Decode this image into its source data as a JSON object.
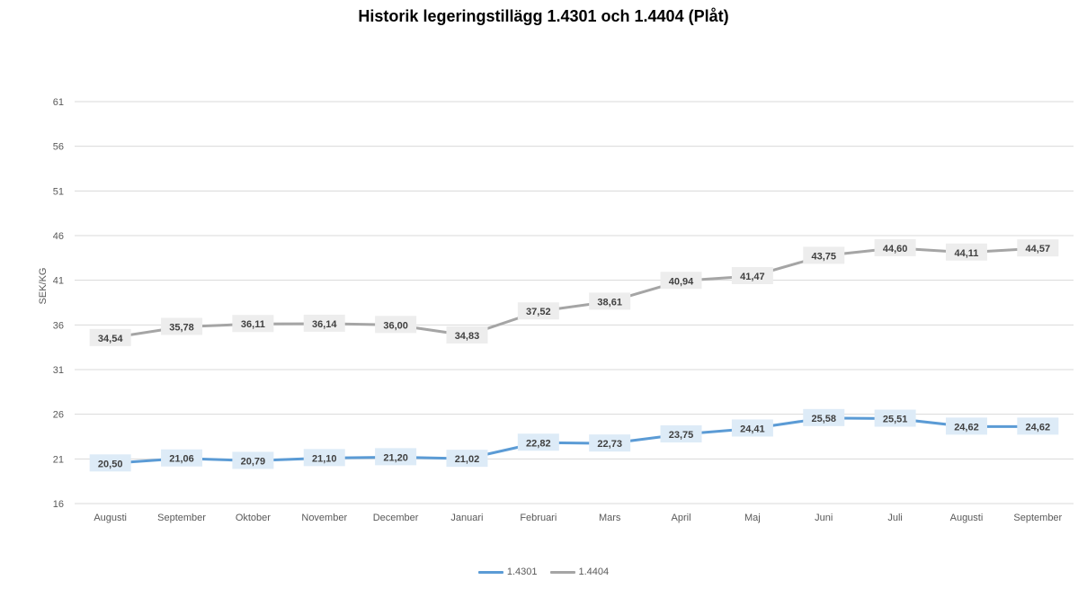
{
  "chart_data": {
    "type": "line",
    "title": "Historik legeringstillägg 1.4301 och 1.4404 (Plåt)",
    "ylabel": "SEK/KG",
    "xlabel": "",
    "ylim": [
      16,
      61
    ],
    "yticks": [
      "16",
      "21",
      "26",
      "31",
      "36",
      "41",
      "46",
      "51",
      "56",
      "61"
    ],
    "grid": true,
    "legend_position": "bottom",
    "categories": [
      "Augusti",
      "September",
      "Oktober",
      "November",
      "December",
      "Januari",
      "Februari",
      "Mars",
      "April",
      "Maj",
      "Juni",
      "Juli",
      "Augusti",
      "September"
    ],
    "series": [
      {
        "name": "1.4301",
        "color": "#5B9BD5",
        "label_bg": "#DDEBF7",
        "values": [
          20.5,
          21.06,
          20.79,
          21.1,
          21.2,
          21.02,
          22.82,
          22.73,
          23.75,
          24.41,
          25.58,
          25.51,
          24.62,
          24.62
        ],
        "labels": [
          "20,50",
          "21,06",
          "20,79",
          "21,10",
          "21,20",
          "21,02",
          "22,82",
          "22,73",
          "23,75",
          "24,41",
          "25,58",
          "25,51",
          "24,62",
          "24,62"
        ]
      },
      {
        "name": "1.4404",
        "color": "#A5A5A5",
        "label_bg": "#EDEDED",
        "values": [
          34.54,
          35.78,
          36.11,
          36.14,
          36.0,
          34.83,
          37.52,
          38.61,
          40.94,
          41.47,
          43.75,
          44.6,
          44.11,
          44.57
        ],
        "labels": [
          "34,54",
          "35,78",
          "36,11",
          "36,14",
          "36,00",
          "34,83",
          "37,52",
          "38,61",
          "40,94",
          "41,47",
          "43,75",
          "44,60",
          "44,11",
          "44,57"
        ]
      }
    ]
  }
}
